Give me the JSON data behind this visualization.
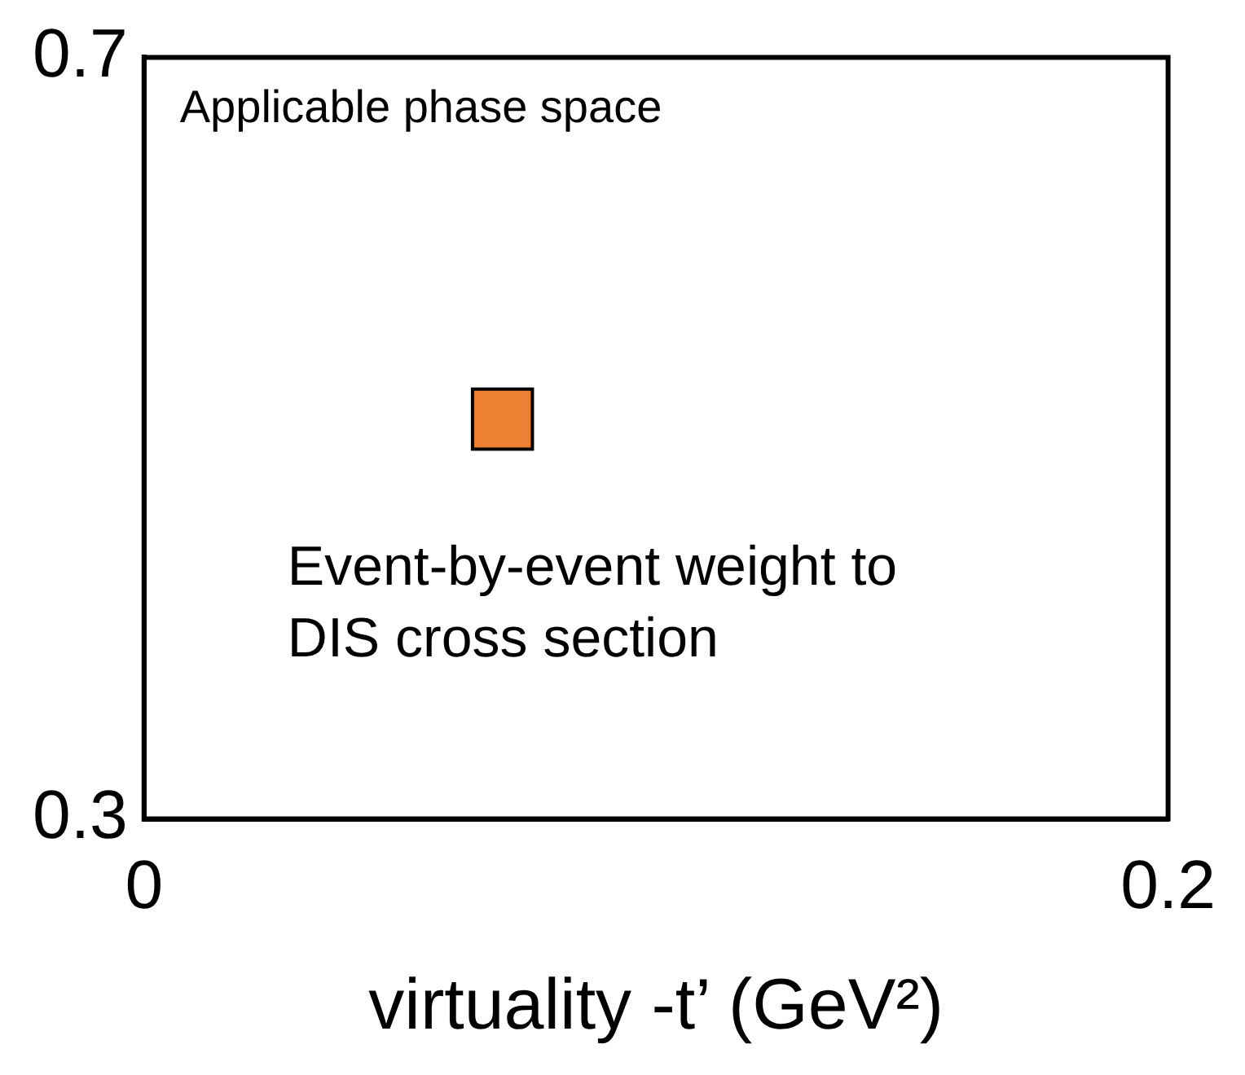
{
  "chart_data": {
    "type": "scatter",
    "xlabel": "virtuality -t’ (GeV²)",
    "x": [
      0.07
    ],
    "values": [
      0.51
    ],
    "color": "#ee8033",
    "marker": "square",
    "xlim": [
      0,
      0.2
    ],
    "xticks": [
      0,
      0.2
    ],
    "ylim": [
      0.3,
      0.7
    ],
    "yticks": [
      0.3,
      0.7
    ],
    "legend": false,
    "annotations": [
      "Applicable phase space",
      "Event-by-event weight to DIS cross section"
    ]
  }
}
